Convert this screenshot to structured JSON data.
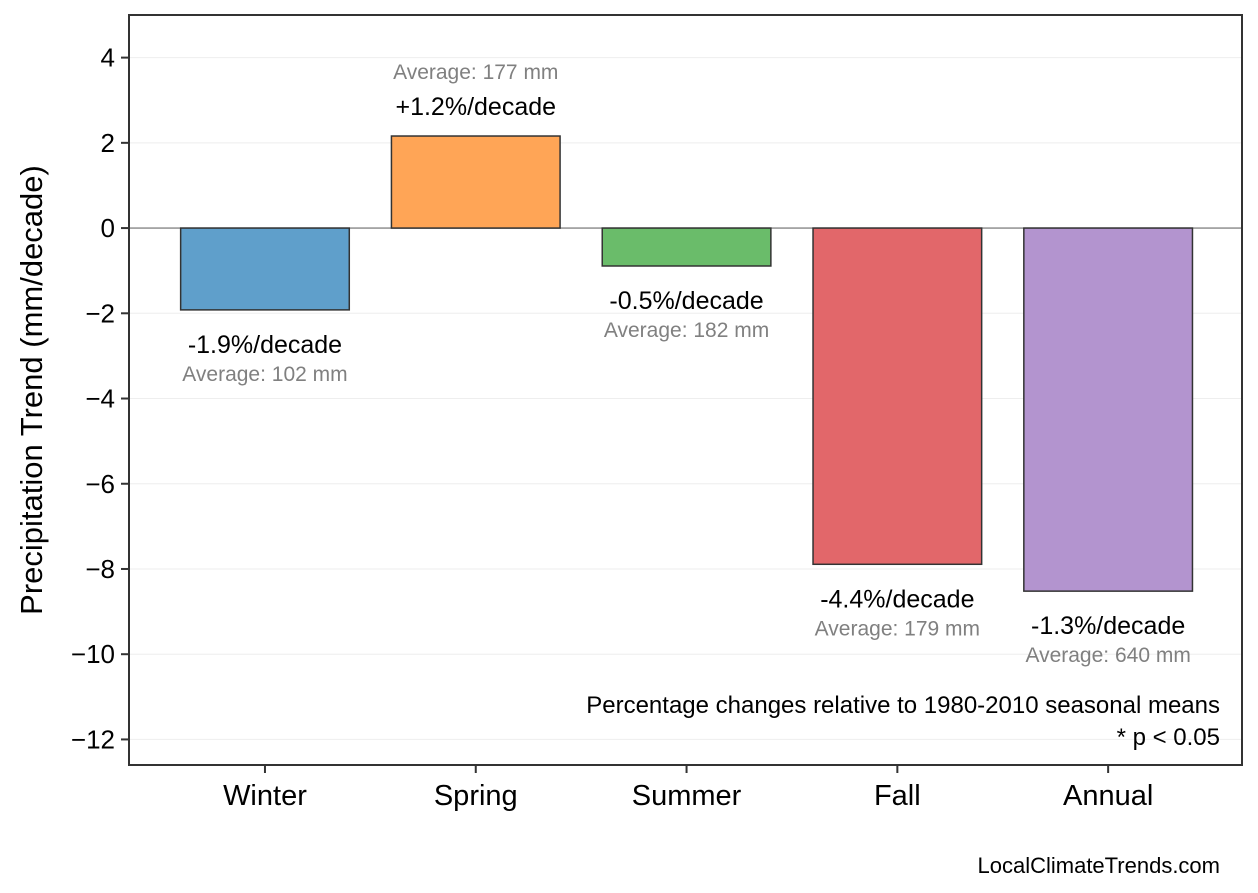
{
  "chart_data": {
    "type": "bar",
    "categories": [
      "Winter",
      "Spring",
      "Summer",
      "Fall",
      "Annual"
    ],
    "values": [
      -1.92,
      2.16,
      -0.89,
      -7.89,
      -8.52
    ],
    "colors": [
      "#5f9fcb",
      "#ffa556",
      "#6abc6a",
      "#e2676a",
      "#b394cf"
    ],
    "pct_labels": [
      "-1.9%/decade",
      "+1.2%/decade",
      "-0.5%/decade",
      "-4.4%/decade",
      "-1.3%/decade"
    ],
    "avg_labels": [
      "Average: 102 mm",
      "Average: 177 mm",
      "Average: 182 mm",
      "Average: 179 mm",
      "Average: 640 mm"
    ],
    "ylabel": "Precipitation Trend (mm/decade)",
    "xlabel": "",
    "ylim": [
      -12.6,
      5
    ],
    "yticks": [
      4,
      2,
      0,
      -2,
      -4,
      -6,
      -8,
      -10,
      -12
    ],
    "ytick_labels": [
      "4",
      "2",
      "0",
      "−2",
      "−4",
      "−6",
      "−8",
      "−10",
      "−12"
    ],
    "grid": true,
    "annotation_lines": [
      "Percentage changes relative to 1980-2010 seasonal means",
      "* p < 0.05"
    ],
    "credit": "LocalClimateTrends.com"
  }
}
